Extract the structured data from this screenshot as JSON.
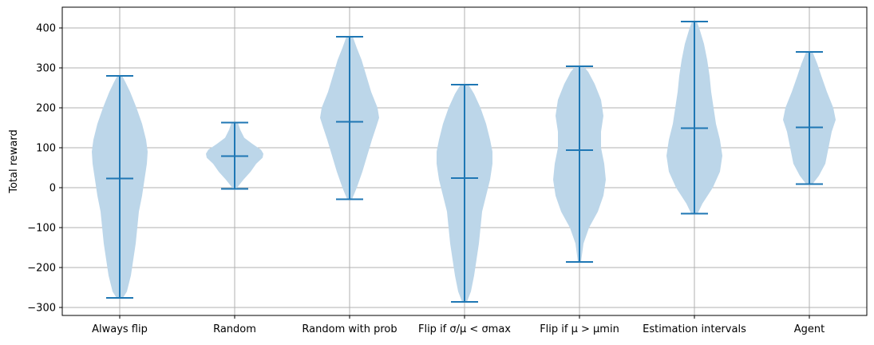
{
  "chart_data": {
    "type": "violin",
    "ylabel": "Total reward",
    "xlabel": "",
    "ylim": [
      -320,
      452
    ],
    "yticks": [
      -300,
      -200,
      -100,
      0,
      100,
      200,
      300,
      400
    ],
    "ytick_labels": [
      "−300",
      "−200",
      "−100",
      "0",
      "100",
      "200",
      "300",
      "400"
    ],
    "grid": true,
    "colors": {
      "body": "#bcd6e9",
      "lines": "#1f77b4",
      "grid": "#b0b0b0"
    },
    "categories": [
      {
        "label": "Always flip",
        "min": -276,
        "max": 280,
        "median": 23,
        "density": [
          [
            -276,
            4
          ],
          [
            -260,
            9
          ],
          [
            -220,
            14
          ],
          [
            -180,
            17
          ],
          [
            -140,
            20
          ],
          [
            -100,
            22
          ],
          [
            -60,
            24
          ],
          [
            -20,
            28
          ],
          [
            20,
            31
          ],
          [
            60,
            34
          ],
          [
            90,
            35
          ],
          [
            120,
            33
          ],
          [
            160,
            28
          ],
          [
            200,
            21
          ],
          [
            240,
            13
          ],
          [
            265,
            7
          ],
          [
            280,
            3
          ]
        ]
      },
      {
        "label": "Random",
        "min": -3,
        "max": 163,
        "median": 79,
        "density": [
          [
            -3,
            2
          ],
          [
            5,
            5
          ],
          [
            20,
            11
          ],
          [
            40,
            20
          ],
          [
            60,
            27
          ],
          [
            75,
            35
          ],
          [
            85,
            36
          ],
          [
            95,
            33
          ],
          [
            110,
            22
          ],
          [
            125,
            12
          ],
          [
            145,
            7
          ],
          [
            163,
            4
          ]
        ]
      },
      {
        "label": "Random with prob",
        "min": -29,
        "max": 378,
        "median": 165,
        "density": [
          [
            -29,
            3
          ],
          [
            0,
            9
          ],
          [
            40,
            16
          ],
          [
            80,
            22
          ],
          [
            120,
            28
          ],
          [
            150,
            33
          ],
          [
            175,
            37
          ],
          [
            200,
            35
          ],
          [
            240,
            27
          ],
          [
            280,
            21
          ],
          [
            320,
            15
          ],
          [
            350,
            9
          ],
          [
            378,
            4
          ]
        ]
      },
      {
        "label": "Flip if σ/μ < σmax",
        "min": -286,
        "max": 258,
        "median": 24,
        "density": [
          [
            -286,
            3
          ],
          [
            -260,
            8
          ],
          [
            -220,
            12
          ],
          [
            -180,
            15
          ],
          [
            -140,
            18
          ],
          [
            -100,
            20
          ],
          [
            -60,
            22
          ],
          [
            -20,
            27
          ],
          [
            20,
            32
          ],
          [
            60,
            35
          ],
          [
            90,
            35
          ],
          [
            120,
            32
          ],
          [
            160,
            27
          ],
          [
            200,
            20
          ],
          [
            235,
            12
          ],
          [
            258,
            5
          ]
        ]
      },
      {
        "label": "Flip if μ > μmin",
        "min": -186,
        "max": 304,
        "median": 94,
        "density": [
          [
            -186,
            2
          ],
          [
            -170,
            3
          ],
          [
            -140,
            5
          ],
          [
            -100,
            12
          ],
          [
            -60,
            23
          ],
          [
            -20,
            30
          ],
          [
            20,
            33
          ],
          [
            60,
            31
          ],
          [
            100,
            27
          ],
          [
            140,
            27
          ],
          [
            180,
            30
          ],
          [
            220,
            27
          ],
          [
            260,
            19
          ],
          [
            290,
            11
          ],
          [
            304,
            5
          ]
        ]
      },
      {
        "label": "Estimation intervals",
        "min": -65,
        "max": 416,
        "median": 149,
        "density": [
          [
            -65,
            4
          ],
          [
            -40,
            10
          ],
          [
            0,
            23
          ],
          [
            40,
            32
          ],
          [
            80,
            35
          ],
          [
            120,
            32
          ],
          [
            160,
            27
          ],
          [
            200,
            24
          ],
          [
            240,
            21
          ],
          [
            280,
            19
          ],
          [
            320,
            16
          ],
          [
            360,
            12
          ],
          [
            400,
            6
          ],
          [
            416,
            3
          ]
        ]
      },
      {
        "label": "Agent",
        "min": 9,
        "max": 340,
        "median": 151,
        "density": [
          [
            9,
            4
          ],
          [
            30,
            12
          ],
          [
            60,
            20
          ],
          [
            100,
            24
          ],
          [
            140,
            28
          ],
          [
            170,
            33
          ],
          [
            200,
            30
          ],
          [
            240,
            22
          ],
          [
            280,
            15
          ],
          [
            310,
            10
          ],
          [
            340,
            4
          ]
        ]
      }
    ]
  }
}
